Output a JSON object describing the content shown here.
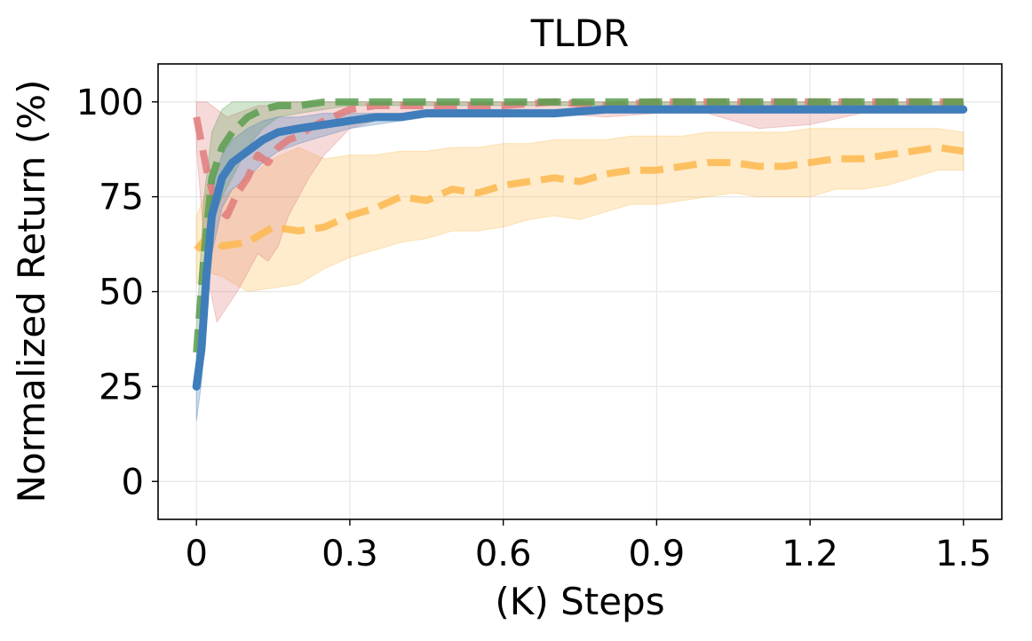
{
  "chart_data": {
    "type": "line",
    "title": "TLDR",
    "xlabel": "(K) Steps",
    "ylabel": "Normalized Return (%)",
    "xlim": [
      -0.075,
      1.575
    ],
    "ylim": [
      -10,
      110
    ],
    "grid": true,
    "legend": "none",
    "xticks": [
      0,
      0.3,
      0.6,
      0.9,
      1.2,
      1.5
    ],
    "xtick_labels": [
      "0",
      "0.3",
      "0.6",
      "0.9",
      "1.2",
      "1.5"
    ],
    "yticks": [
      0,
      25,
      50,
      75,
      100
    ],
    "ytick_labels": [
      "0",
      "25",
      "50",
      "75",
      "100"
    ],
    "series": [
      {
        "name": "orange-dashed",
        "color": "#fdb94d",
        "style": "dashed",
        "x": [
          0,
          0.025,
          0.05,
          0.1,
          0.15,
          0.2,
          0.25,
          0.3,
          0.35,
          0.4,
          0.45,
          0.5,
          0.55,
          0.6,
          0.65,
          0.7,
          0.75,
          0.8,
          0.85,
          0.9,
          0.95,
          1.0,
          1.05,
          1.1,
          1.15,
          1.2,
          1.25,
          1.3,
          1.35,
          1.4,
          1.45,
          1.5
        ],
        "values": [
          61,
          65,
          62,
          63,
          67,
          66,
          67,
          70,
          72,
          75,
          74,
          77,
          76,
          78,
          79,
          80,
          79,
          81,
          82,
          82,
          83,
          84,
          84,
          83,
          83,
          84,
          85,
          85,
          86,
          87,
          88,
          87
        ],
        "upper": [
          70,
          78,
          75,
          80,
          85,
          88,
          85,
          86,
          86,
          87,
          87,
          88,
          88,
          89,
          89,
          90,
          90,
          90,
          91,
          91,
          91,
          92,
          92,
          92,
          92,
          93,
          93,
          93,
          93,
          93,
          93,
          92
        ],
        "lower": [
          52,
          55,
          54,
          50,
          51,
          52,
          56,
          59,
          61,
          63,
          64,
          66,
          66,
          67,
          69,
          70,
          69,
          71,
          73,
          73,
          74,
          75,
          76,
          75,
          75,
          75,
          77,
          77,
          78,
          80,
          82,
          82
        ]
      },
      {
        "name": "red-dashed",
        "color": "#e07b7b",
        "style": "dashed",
        "x": [
          0,
          0.02,
          0.04,
          0.06,
          0.08,
          0.1,
          0.12,
          0.14,
          0.16,
          0.18,
          0.2,
          0.22,
          0.25,
          0.3,
          0.35,
          0.4,
          0.5,
          0.6,
          0.7,
          0.8,
          0.9,
          1.0,
          1.1,
          1.2,
          1.3,
          1.4,
          1.5
        ],
        "values": [
          96,
          82,
          72,
          70,
          76,
          80,
          86,
          84,
          88,
          90,
          91,
          93,
          95,
          98,
          99,
          99,
          99,
          99,
          100,
          99,
          100,
          100,
          100,
          100,
          100,
          100,
          100
        ],
        "upper": [
          100,
          100,
          98,
          96,
          97,
          98,
          99,
          99,
          100,
          100,
          100,
          100,
          100,
          100,
          100,
          100,
          100,
          100,
          100,
          100,
          100,
          100,
          100,
          100,
          100,
          100,
          100
        ],
        "lower": [
          88,
          55,
          42,
          46,
          50,
          55,
          60,
          58,
          62,
          70,
          75,
          80,
          86,
          93,
          95,
          96,
          96,
          96,
          97,
          96,
          97,
          97,
          93,
          94,
          97,
          97,
          97
        ]
      },
      {
        "name": "green-dashed",
        "color": "#5a9e50",
        "style": "dashed",
        "x": [
          0,
          0.015,
          0.03,
          0.05,
          0.07,
          0.1,
          0.13,
          0.16,
          0.2,
          0.25,
          0.3,
          0.35,
          0.4,
          0.5,
          0.6,
          0.7,
          0.8,
          0.9,
          1.0,
          1.1,
          1.2,
          1.3,
          1.4,
          1.5
        ],
        "values": [
          34,
          60,
          80,
          88,
          92,
          96,
          98,
          99,
          99,
          100,
          100,
          100,
          100,
          100,
          100,
          100,
          100,
          100,
          100,
          100,
          100,
          100,
          100,
          100
        ],
        "upper": [
          40,
          75,
          92,
          98,
          100,
          100,
          100,
          100,
          100,
          100,
          100,
          100,
          100,
          100,
          100,
          100,
          100,
          100,
          100,
          100,
          100,
          100,
          100,
          100
        ],
        "lower": [
          28,
          48,
          68,
          75,
          80,
          88,
          93,
          96,
          97,
          98,
          99,
          99,
          99,
          99,
          99,
          99,
          99,
          99,
          99,
          99,
          99,
          99,
          99,
          99
        ]
      },
      {
        "name": "blue-solid",
        "color": "#3f7dbb",
        "style": "solid",
        "x": [
          0,
          0.01,
          0.02,
          0.03,
          0.05,
          0.07,
          0.1,
          0.13,
          0.16,
          0.2,
          0.25,
          0.3,
          0.35,
          0.4,
          0.45,
          0.5,
          0.6,
          0.7,
          0.8,
          0.9,
          1.0,
          1.1,
          1.2,
          1.3,
          1.4,
          1.5
        ],
        "values": [
          25,
          35,
          55,
          70,
          80,
          84,
          87,
          90,
          92,
          93,
          94,
          95,
          96,
          96,
          97,
          97,
          97,
          97,
          98,
          98,
          98,
          98,
          98,
          98,
          98,
          98
        ],
        "upper": [
          30,
          42,
          64,
          78,
          86,
          90,
          93,
          95,
          96,
          96,
          97,
          97,
          97,
          97,
          98,
          98,
          98,
          98,
          99,
          99,
          99,
          99,
          99,
          99,
          99,
          99
        ],
        "lower": [
          16,
          26,
          45,
          60,
          72,
          77,
          80,
          84,
          87,
          89,
          91,
          93,
          94,
          95,
          96,
          96,
          96,
          96,
          97,
          97,
          97,
          97,
          97,
          97,
          97,
          97
        ]
      }
    ]
  }
}
